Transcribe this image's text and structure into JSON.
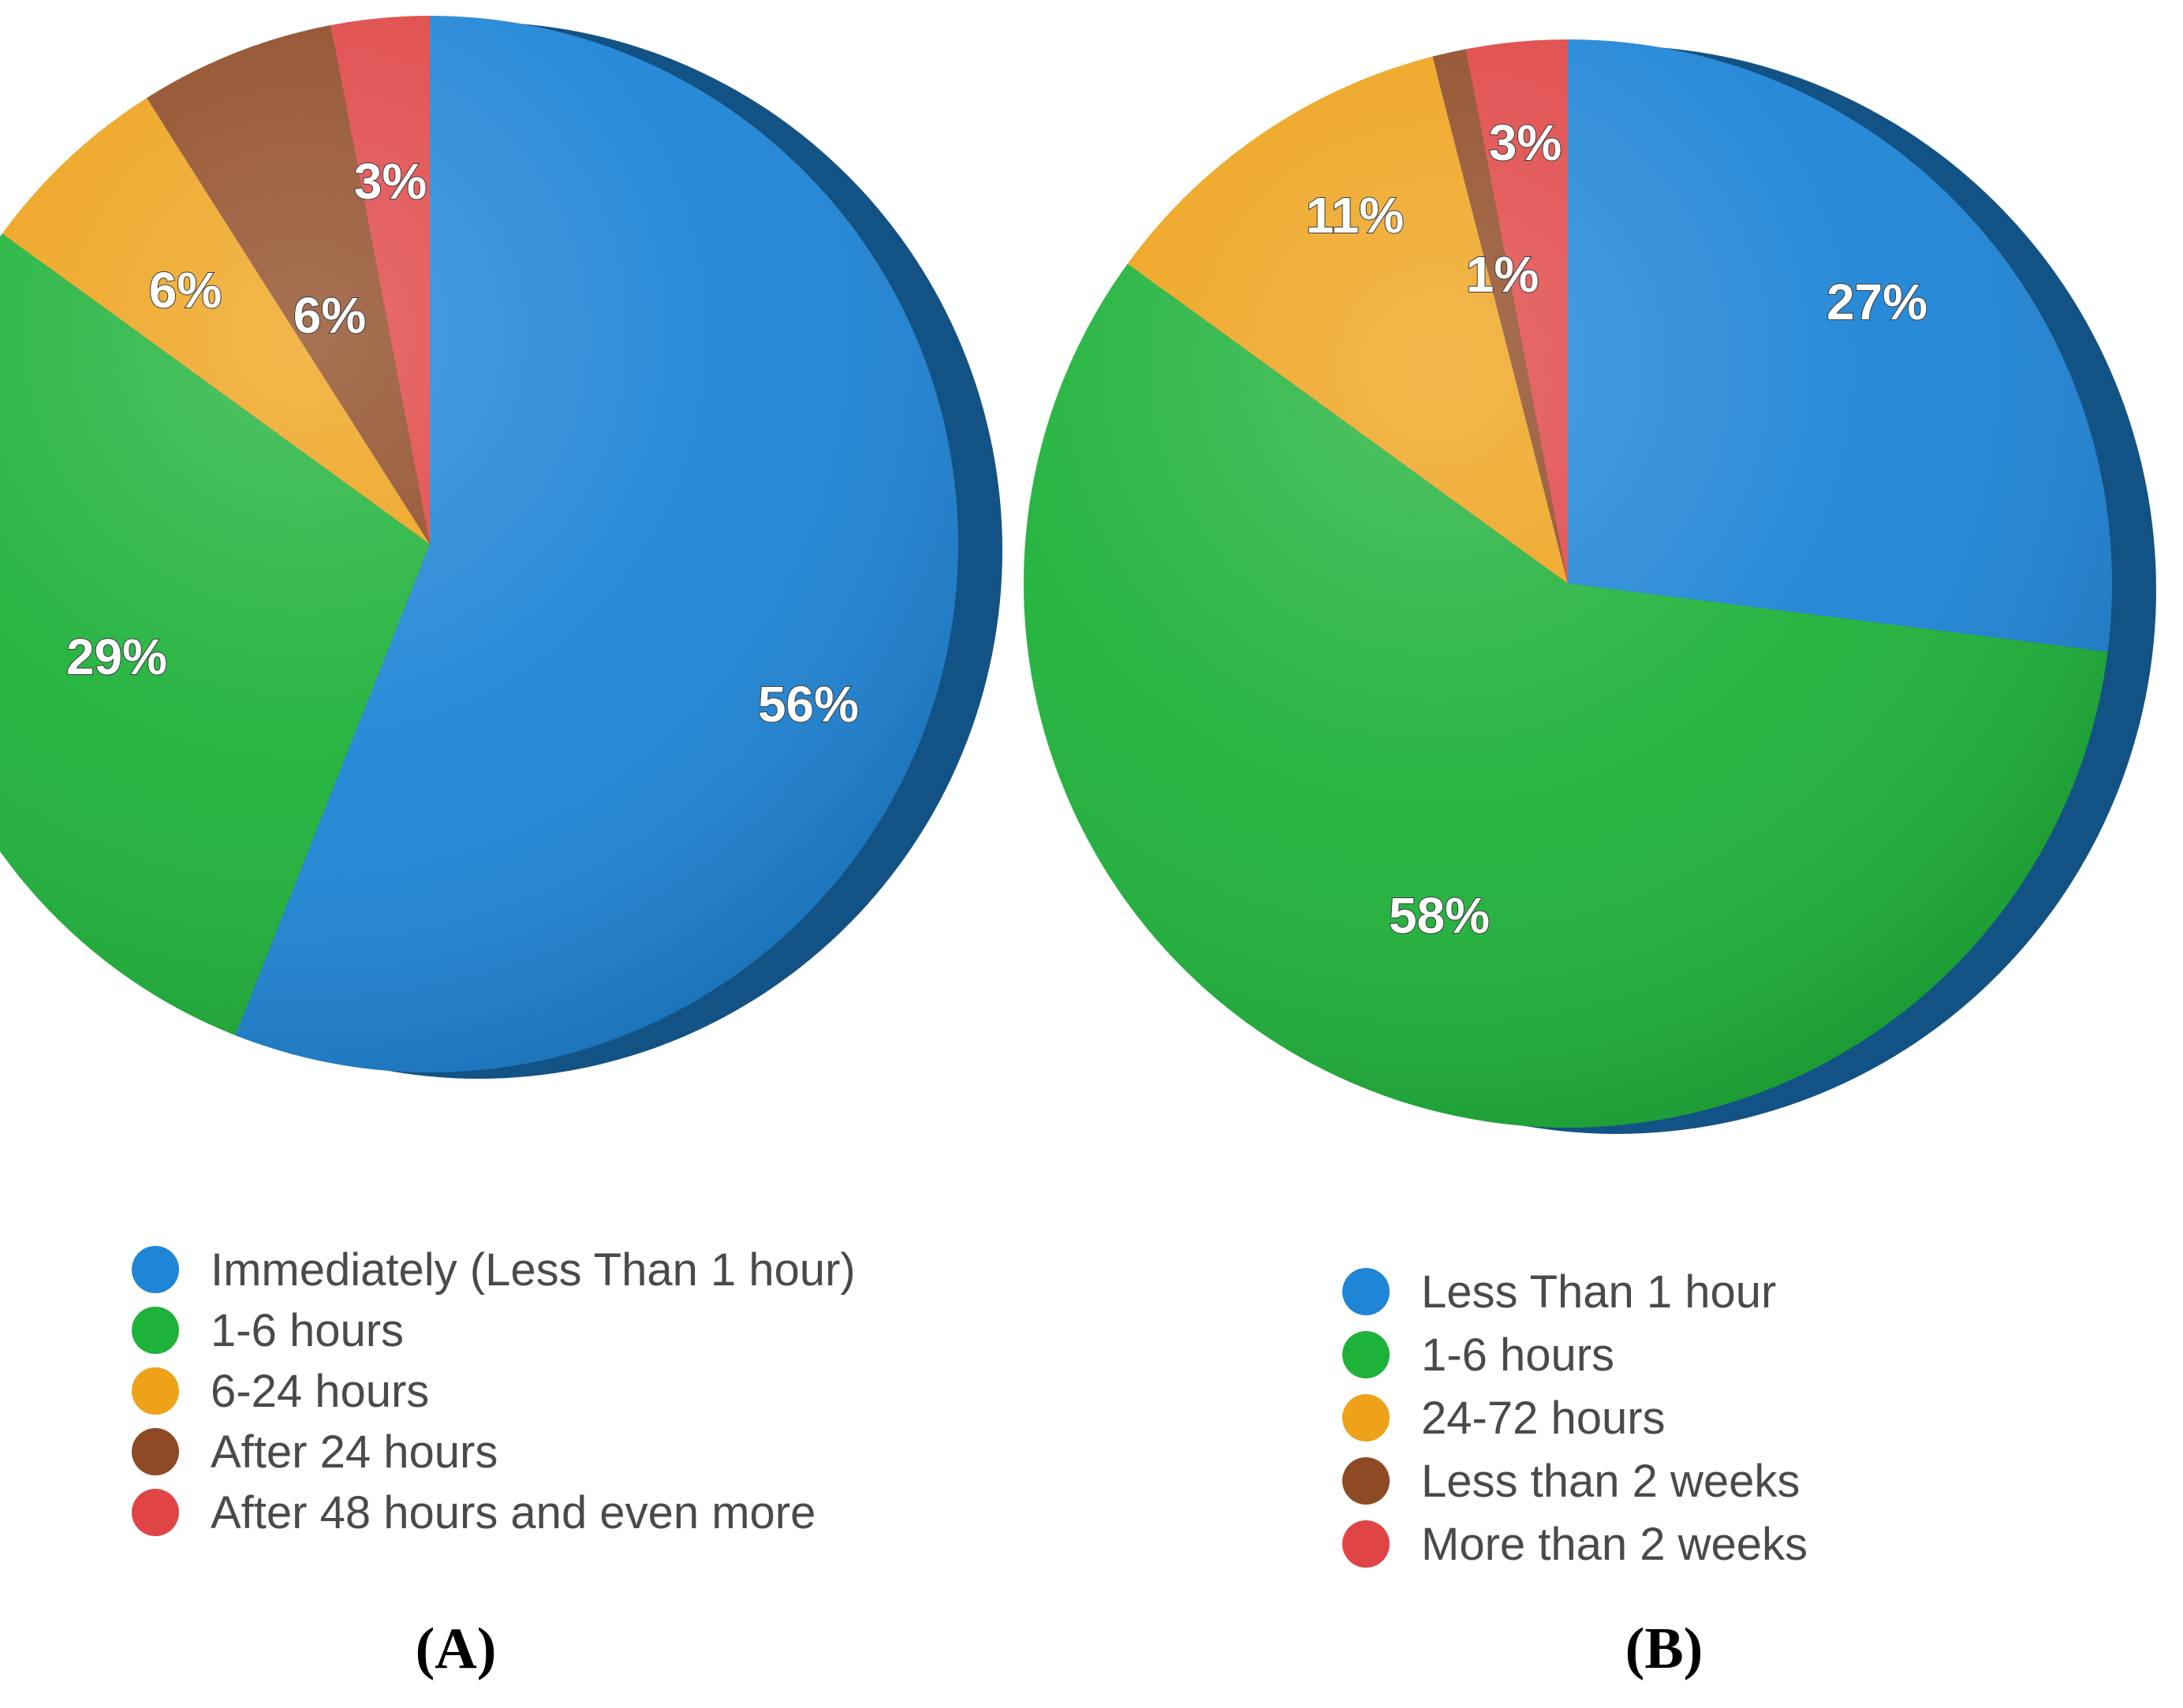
{
  "chart_data": [
    {
      "type": "pie",
      "panel_label": "(A)",
      "slices": [
        {
          "label": "Immediately (Less Than 1 hour)",
          "value": 56,
          "display": "56%",
          "color": "#1f85d6"
        },
        {
          "label": "1-6 hours",
          "value": 29,
          "display": "29%",
          "color": "#1fb23a"
        },
        {
          "label": "6-24 hours",
          "value": 6,
          "display": "6%",
          "color": "#eea21a"
        },
        {
          "label": "After 24 hours",
          "value": 6,
          "display": "6%",
          "color": "#8e4a24"
        },
        {
          "label": "After 48 hours and even more",
          "value": 3,
          "display": "3%",
          "color": "#e04545"
        }
      ]
    },
    {
      "type": "pie",
      "panel_label": "(B)",
      "slices": [
        {
          "label": "Less Than 1 hour",
          "value": 27,
          "display": "27%",
          "color": "#1f85d6"
        },
        {
          "label": "1-6 hours",
          "value": 58,
          "display": "58%",
          "color": "#1fb23a"
        },
        {
          "label": "24-72 hours",
          "value": 11,
          "display": "11%",
          "color": "#eea21a"
        },
        {
          "label": "Less than 2 weeks",
          "value": 1,
          "display": "1%",
          "color": "#8e4a24"
        },
        {
          "label": "More than 2 weeks",
          "value": 3,
          "display": "3%",
          "color": "#e04545"
        }
      ]
    }
  ]
}
